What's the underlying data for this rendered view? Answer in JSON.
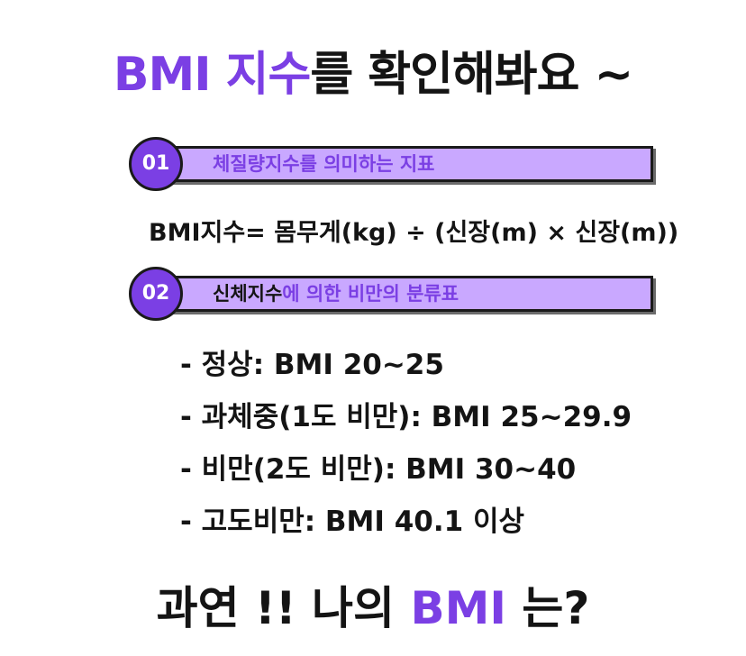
{
  "title": {
    "accent": "BMI 지수",
    "rest": "를 확인해봐요 ~"
  },
  "section1": {
    "number": "01",
    "text": "체질량지수를 의미하는 지표"
  },
  "formula": "BMI지수= 몸무게(kg) ÷ (신장(m) × 신장(m))",
  "section2": {
    "number": "02",
    "text_dark": "신체지수",
    "text_purple": "에 의한 비만의 분류표"
  },
  "classifications": [
    "- 정상: BMI 20~25",
    "- 과체중(1도 비만): BMI 25~29.9",
    "- 비만(2도 비만): BMI 30~40",
    "- 고도비만: BMI 40.1 이상"
  ],
  "bottom": {
    "before": "과연 !! 나의 ",
    "accent": "BMI",
    "after": " 는?"
  },
  "colors": {
    "accent": "#7b3fe4",
    "bar_fill": "#c9a8ff",
    "text": "#141414"
  }
}
